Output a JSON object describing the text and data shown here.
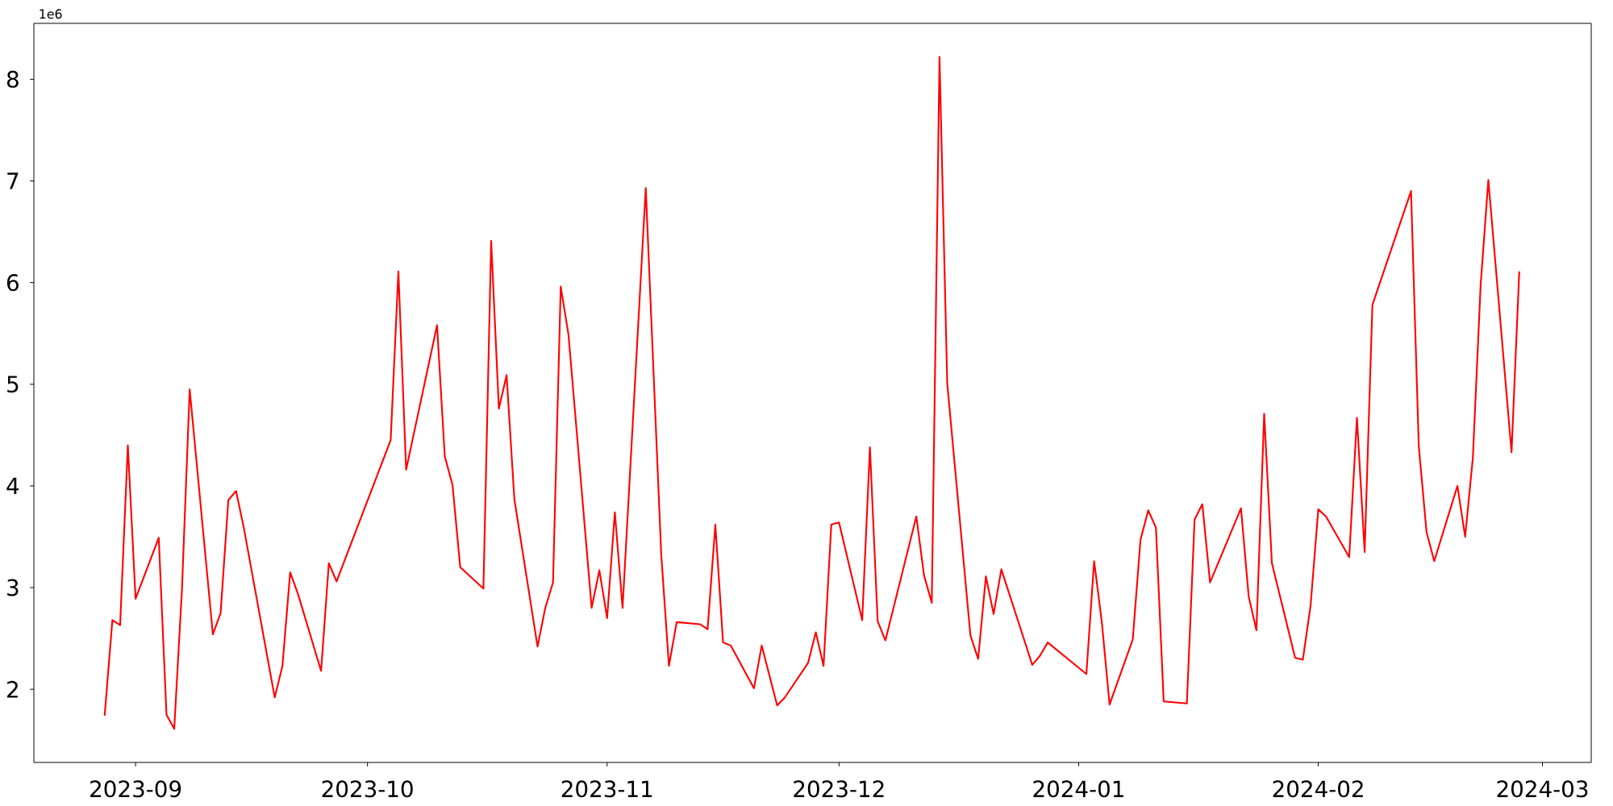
{
  "chart_data": {
    "type": "line",
    "color": "#ff0000",
    "x": [
      "2023-08-28",
      "2023-08-29",
      "2023-08-30",
      "2023-08-31",
      "2023-09-01",
      "2023-09-04",
      "2023-09-05",
      "2023-09-06",
      "2023-09-07",
      "2023-09-08",
      "2023-09-11",
      "2023-09-12",
      "2023-09-13",
      "2023-09-14",
      "2023-09-15",
      "2023-09-19",
      "2023-09-20",
      "2023-09-21",
      "2023-09-22",
      "2023-09-25",
      "2023-09-26",
      "2023-09-27",
      "2023-10-04",
      "2023-10-05",
      "2023-10-06",
      "2023-10-10",
      "2023-10-11",
      "2023-10-12",
      "2023-10-13",
      "2023-10-16",
      "2023-10-17",
      "2023-10-18",
      "2023-10-19",
      "2023-10-20",
      "2023-10-23",
      "2023-10-24",
      "2023-10-25",
      "2023-10-26",
      "2023-10-27",
      "2023-10-30",
      "2023-10-31",
      "2023-11-01",
      "2023-11-02",
      "2023-11-03",
      "2023-11-06",
      "2023-11-08",
      "2023-11-09",
      "2023-11-10",
      "2023-11-13",
      "2023-11-14",
      "2023-11-15",
      "2023-11-16",
      "2023-11-17",
      "2023-11-20",
      "2023-11-21",
      "2023-11-23",
      "2023-11-24",
      "2023-11-27",
      "2023-11-28",
      "2023-11-29",
      "2023-11-30",
      "2023-12-01",
      "2023-12-04",
      "2023-12-05",
      "2023-12-06",
      "2023-12-07",
      "2023-12-11",
      "2023-12-12",
      "2023-12-13",
      "2023-12-14",
      "2023-12-15",
      "2023-12-18",
      "2023-12-19",
      "2023-12-20",
      "2023-12-21",
      "2023-12-22",
      "2023-12-26",
      "2023-12-27",
      "2023-12-28",
      "2024-01-02",
      "2024-01-03",
      "2024-01-04",
      "2024-01-05",
      "2024-01-08",
      "2024-01-09",
      "2024-01-10",
      "2024-01-11",
      "2024-01-12",
      "2024-01-15",
      "2024-01-16",
      "2024-01-17",
      "2024-01-18",
      "2024-01-22",
      "2024-01-23",
      "2024-01-24",
      "2024-01-25",
      "2024-01-26",
      "2024-01-29",
      "2024-01-30",
      "2024-01-31",
      "2024-02-01",
      "2024-02-02",
      "2024-02-05",
      "2024-02-06",
      "2024-02-07",
      "2024-02-08",
      "2024-02-13",
      "2024-02-14",
      "2024-02-15",
      "2024-02-16",
      "2024-02-19",
      "2024-02-20",
      "2024-02-21",
      "2024-02-22",
      "2024-02-23",
      "2024-02-26",
      "2024-02-27"
    ],
    "values": [
      1.74,
      2.68,
      2.63,
      4.4,
      2.89,
      3.49,
      1.75,
      1.61,
      2.98,
      4.95,
      2.54,
      2.75,
      3.86,
      3.95,
      3.59,
      1.92,
      2.23,
      3.15,
      2.94,
      2.18,
      3.24,
      3.06,
      4.45,
      6.11,
      4.16,
      5.58,
      4.29,
      4.01,
      3.2,
      2.99,
      6.41,
      4.76,
      5.09,
      3.87,
      2.42,
      2.8,
      3.05,
      5.96,
      5.49,
      2.8,
      3.17,
      2.7,
      3.74,
      2.8,
      6.93,
      3.33,
      2.23,
      2.66,
      2.64,
      2.59,
      3.62,
      2.46,
      2.43,
      2.01,
      2.43,
      1.84,
      1.92,
      2.26,
      2.56,
      2.23,
      3.62,
      3.64,
      2.68,
      4.38,
      2.67,
      2.48,
      3.7,
      3.12,
      2.85,
      8.22,
      5.01,
      2.53,
      2.3,
      3.11,
      2.74,
      3.18,
      2.24,
      2.33,
      2.46,
      2.15,
      3.26,
      2.66,
      1.85,
      2.49,
      3.47,
      3.76,
      3.59,
      1.88,
      1.86,
      3.67,
      3.82,
      3.05,
      3.78,
      2.91,
      2.58,
      4.71,
      3.24,
      2.31,
      2.29,
      2.82,
      3.77,
      3.7,
      3.3,
      4.67,
      3.35,
      5.78,
      6.9,
      4.39,
      3.55,
      3.26,
      4.0,
      3.5,
      4.28,
      5.97,
      7.01,
      4.33,
      6.11
    ],
    "xlim": [
      "2023-08-18T20:17",
      "2024-03-07T07:26"
    ],
    "ylim": [
      1.28,
      8.55
    ],
    "xticks": [
      "2023-09",
      "2023-10",
      "2023-11",
      "2023-12",
      "2024-01",
      "2024-02",
      "2024-03"
    ],
    "yticks": [
      2,
      3,
      4,
      5,
      6,
      7,
      8
    ],
    "annotations": [
      "1e6"
    ]
  }
}
